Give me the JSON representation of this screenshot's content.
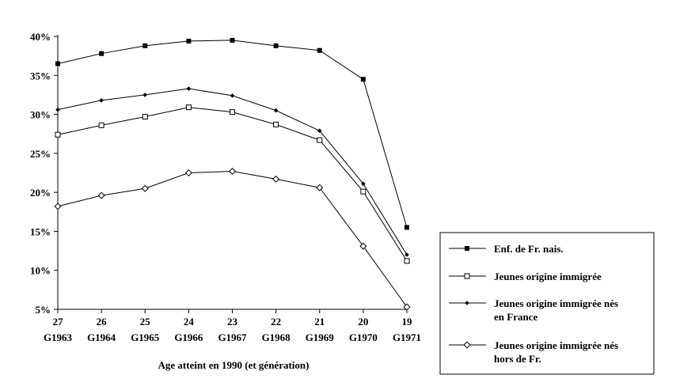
{
  "chart_data": {
    "type": "line",
    "title": "",
    "xlabel": "Age atteint en 1990 (et génération)",
    "ylabel": "",
    "categories": [
      {
        "age": "27",
        "gen": "G1963"
      },
      {
        "age": "26",
        "gen": "G1964"
      },
      {
        "age": "25",
        "gen": "G1965"
      },
      {
        "age": "24",
        "gen": "G1966"
      },
      {
        "age": "23",
        "gen": "G1967"
      },
      {
        "age": "22",
        "gen": "G1968"
      },
      {
        "age": "21",
        "gen": "G1969"
      },
      {
        "age": "20",
        "gen": "G1970"
      },
      {
        "age": "19",
        "gen": "G1971"
      }
    ],
    "yticks": [
      "5%",
      "10%",
      "15%",
      "20%",
      "25%",
      "30%",
      "35%",
      "40%"
    ],
    "ylim": [
      5,
      40
    ],
    "grid": false,
    "legend_position": "bottom-right",
    "series": [
      {
        "name": "Enf. de Fr. nais.",
        "legend_lines": [
          "Enf. de Fr. nais."
        ],
        "marker": "filled-square",
        "color": "#000000",
        "values": [
          36.5,
          37.8,
          38.8,
          39.4,
          39.5,
          38.8,
          38.2,
          34.5,
          15.5
        ]
      },
      {
        "name": "Jeunes origine immigrée",
        "legend_lines": [
          "Jeunes origine immigrée"
        ],
        "marker": "open-square",
        "color": "#000000",
        "values": [
          27.4,
          28.6,
          29.7,
          30.9,
          30.3,
          28.7,
          26.7,
          20.1,
          11.2
        ]
      },
      {
        "name": "Jeunes origine immigrée nés en France",
        "legend_lines": [
          "Jeunes origine immigrée nés",
          "en France"
        ],
        "marker": "filled-diamond",
        "color": "#000000",
        "values": [
          30.6,
          31.8,
          32.5,
          33.3,
          32.4,
          30.5,
          27.9,
          21.1,
          12.0
        ]
      },
      {
        "name": "Jeunes origine immigrée nés hors de Fr.",
        "legend_lines": [
          "Jeunes origine immigrée nés",
          "hors de Fr."
        ],
        "marker": "open-diamond",
        "color": "#000000",
        "values": [
          18.2,
          19.6,
          20.5,
          22.5,
          22.7,
          21.7,
          20.6,
          13.1,
          5.3
        ]
      }
    ]
  }
}
